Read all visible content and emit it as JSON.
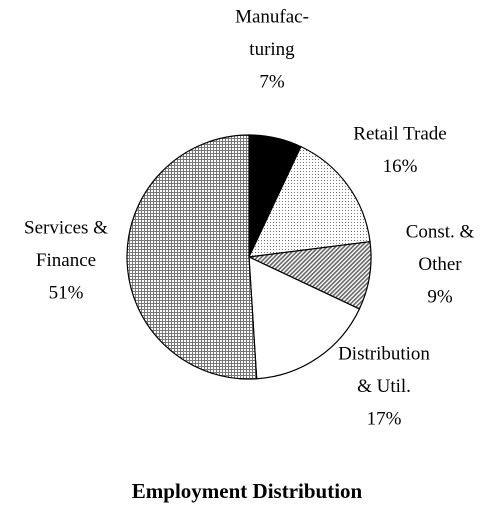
{
  "chart_data": {
    "type": "pie",
    "title": "Employment Distribution",
    "categories": [
      [
        "Manufac-",
        "turing"
      ],
      [
        "Retail Trade"
      ],
      [
        "Const. &",
        "Other"
      ],
      [
        "Distribution",
        "& Util."
      ],
      [
        "Services &",
        "Finance"
      ]
    ],
    "values": [
      7,
      16,
      9,
      17,
      51
    ],
    "value_labels": [
      "7%",
      "16%",
      "9%",
      "17%",
      "51%"
    ],
    "colors": [
      "#000000",
      "#e6e6e6",
      "#a8a8a8",
      "#ffffff",
      "#bcbcbc"
    ],
    "patterns": [
      "solid",
      "dots",
      "diagonal",
      "solid",
      "crosshatch"
    ]
  }
}
